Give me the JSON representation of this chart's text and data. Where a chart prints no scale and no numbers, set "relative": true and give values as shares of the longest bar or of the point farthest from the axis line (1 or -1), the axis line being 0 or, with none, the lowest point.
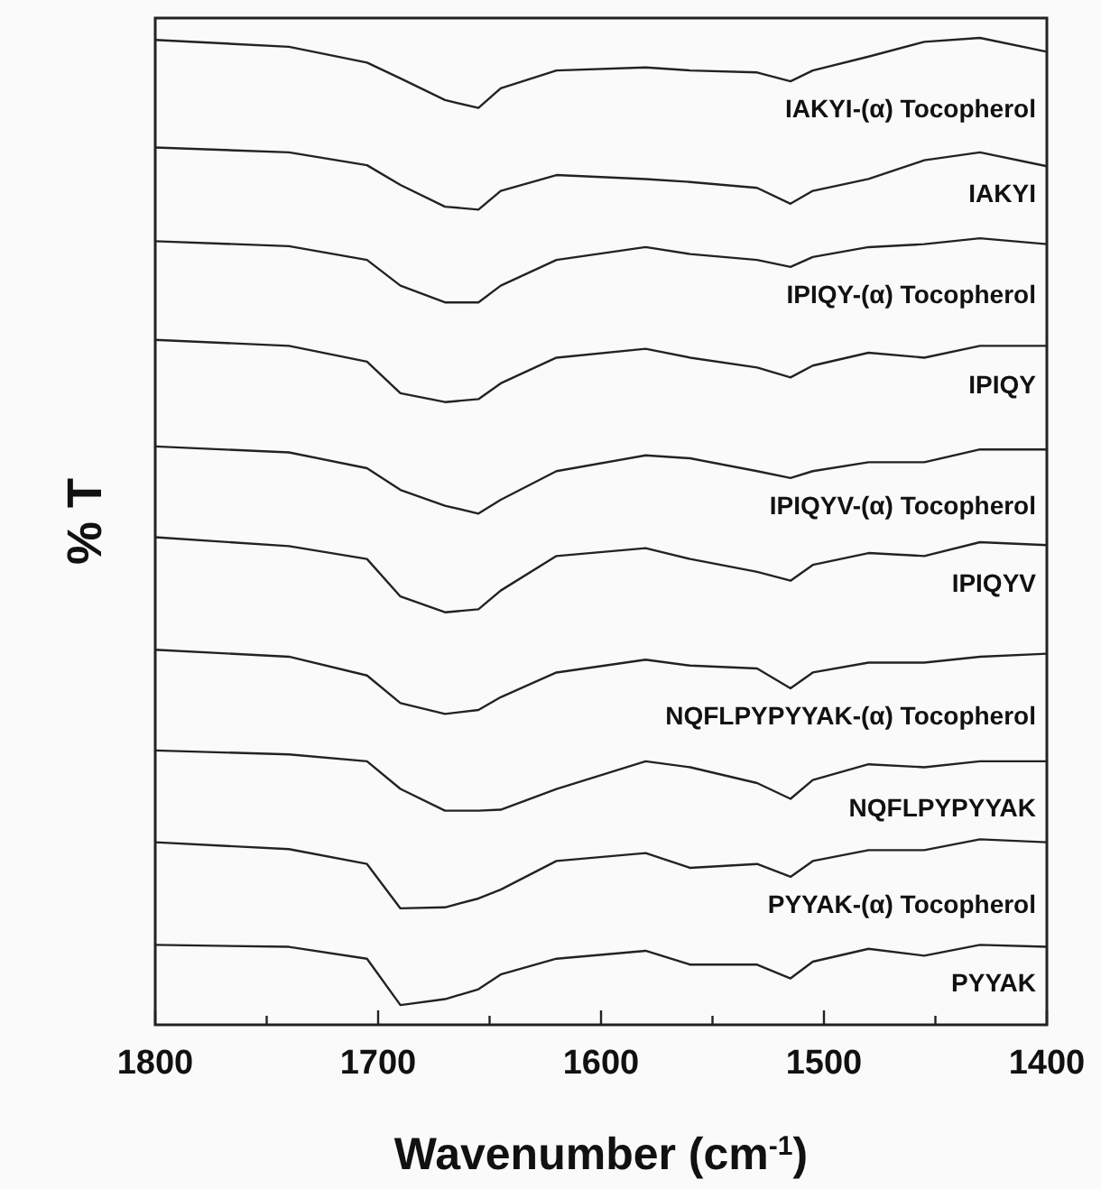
{
  "chart_data": {
    "type": "line",
    "relative": true,
    "xlabel": "Wavenumber (cm$^{-1}$)",
    "ylabel": "% T",
    "xlim": [
      1800,
      1400
    ],
    "xticks": [
      1800,
      {
        "value": 1750,
        "label": null
      },
      1700,
      {
        "value": 1650,
        "label": null
      },
      1600,
      {
        "value": 1550,
        "label": null
      },
      1500,
      {
        "value": 1450,
        "label": null
      },
      1400
    ],
    "tick_labels": "x",
    "grid": false,
    "line_style": "solid",
    "x": [
      1800,
      1740,
      1705,
      1690,
      1670,
      1655,
      1645,
      1620,
      1580,
      1560,
      1530,
      1515,
      1505,
      1480,
      1455,
      1430,
      1400
    ],
    "series": [
      {
        "name": "IAKYI-(α) Tocopherol",
        "color": "#222222",
        "values": [
          0.998,
          0.991,
          0.975,
          0.959,
          0.937,
          0.929,
          0.949,
          0.967,
          0.97,
          0.967,
          0.965,
          0.956,
          0.967,
          0.981,
          0.996,
          1.0,
          0.986
        ]
      },
      {
        "name": "IAKYI",
        "color": "#222222",
        "values": [
          0.889,
          0.884,
          0.871,
          0.851,
          0.829,
          0.826,
          0.845,
          0.861,
          0.857,
          0.854,
          0.848,
          0.832,
          0.845,
          0.857,
          0.876,
          0.884,
          0.87
        ]
      },
      {
        "name": "IPIQY-(α) Tocopherol",
        "color": "#222222",
        "values": [
          0.794,
          0.789,
          0.775,
          0.749,
          0.732,
          0.732,
          0.749,
          0.775,
          0.788,
          0.781,
          0.775,
          0.768,
          0.778,
          0.788,
          0.791,
          0.797,
          0.791
        ]
      },
      {
        "name": "IPIQY",
        "color": "#222222",
        "values": [
          0.694,
          0.688,
          0.672,
          0.64,
          0.631,
          0.634,
          0.65,
          0.676,
          0.685,
          0.676,
          0.666,
          0.656,
          0.668,
          0.681,
          0.676,
          0.688,
          0.688
        ]
      },
      {
        "name": "IPIQYV-(α) Tocopherol",
        "color": "#222222",
        "values": [
          0.586,
          0.58,
          0.564,
          0.542,
          0.526,
          0.518,
          0.532,
          0.561,
          0.577,
          0.574,
          0.561,
          0.554,
          0.561,
          0.57,
          0.57,
          0.583,
          0.583
        ]
      },
      {
        "name": "IPIQYV",
        "color": "#222222",
        "values": [
          0.494,
          0.485,
          0.472,
          0.434,
          0.418,
          0.421,
          0.44,
          0.475,
          0.483,
          0.472,
          0.459,
          0.45,
          0.466,
          0.478,
          0.475,
          0.489,
          0.486
        ]
      },
      {
        "name": "NQFLPYPYYAK-(α) Tocopherol",
        "color": "#222222",
        "values": [
          0.38,
          0.373,
          0.354,
          0.326,
          0.315,
          0.319,
          0.332,
          0.357,
          0.37,
          0.364,
          0.361,
          0.341,
          0.357,
          0.367,
          0.367,
          0.373,
          0.376
        ]
      },
      {
        "name": "NQFLPYPYYAK",
        "color": "#222222",
        "values": [
          0.278,
          0.274,
          0.267,
          0.239,
          0.217,
          0.217,
          0.218,
          0.239,
          0.267,
          0.261,
          0.245,
          0.229,
          0.248,
          0.264,
          0.261,
          0.267,
          0.267
        ]
      },
      {
        "name": "PYYAK-(α) Tocopherol",
        "color": "#222222",
        "values": [
          0.185,
          0.178,
          0.163,
          0.118,
          0.119,
          0.128,
          0.137,
          0.166,
          0.174,
          0.159,
          0.163,
          0.15,
          0.166,
          0.177,
          0.177,
          0.188,
          0.185
        ]
      },
      {
        "name": "PYYAK",
        "color": "#222222",
        "values": [
          0.081,
          0.079,
          0.067,
          0.02,
          0.026,
          0.036,
          0.051,
          0.067,
          0.075,
          0.061,
          0.061,
          0.047,
          0.064,
          0.077,
          0.07,
          0.081,
          0.079
        ]
      }
    ]
  }
}
